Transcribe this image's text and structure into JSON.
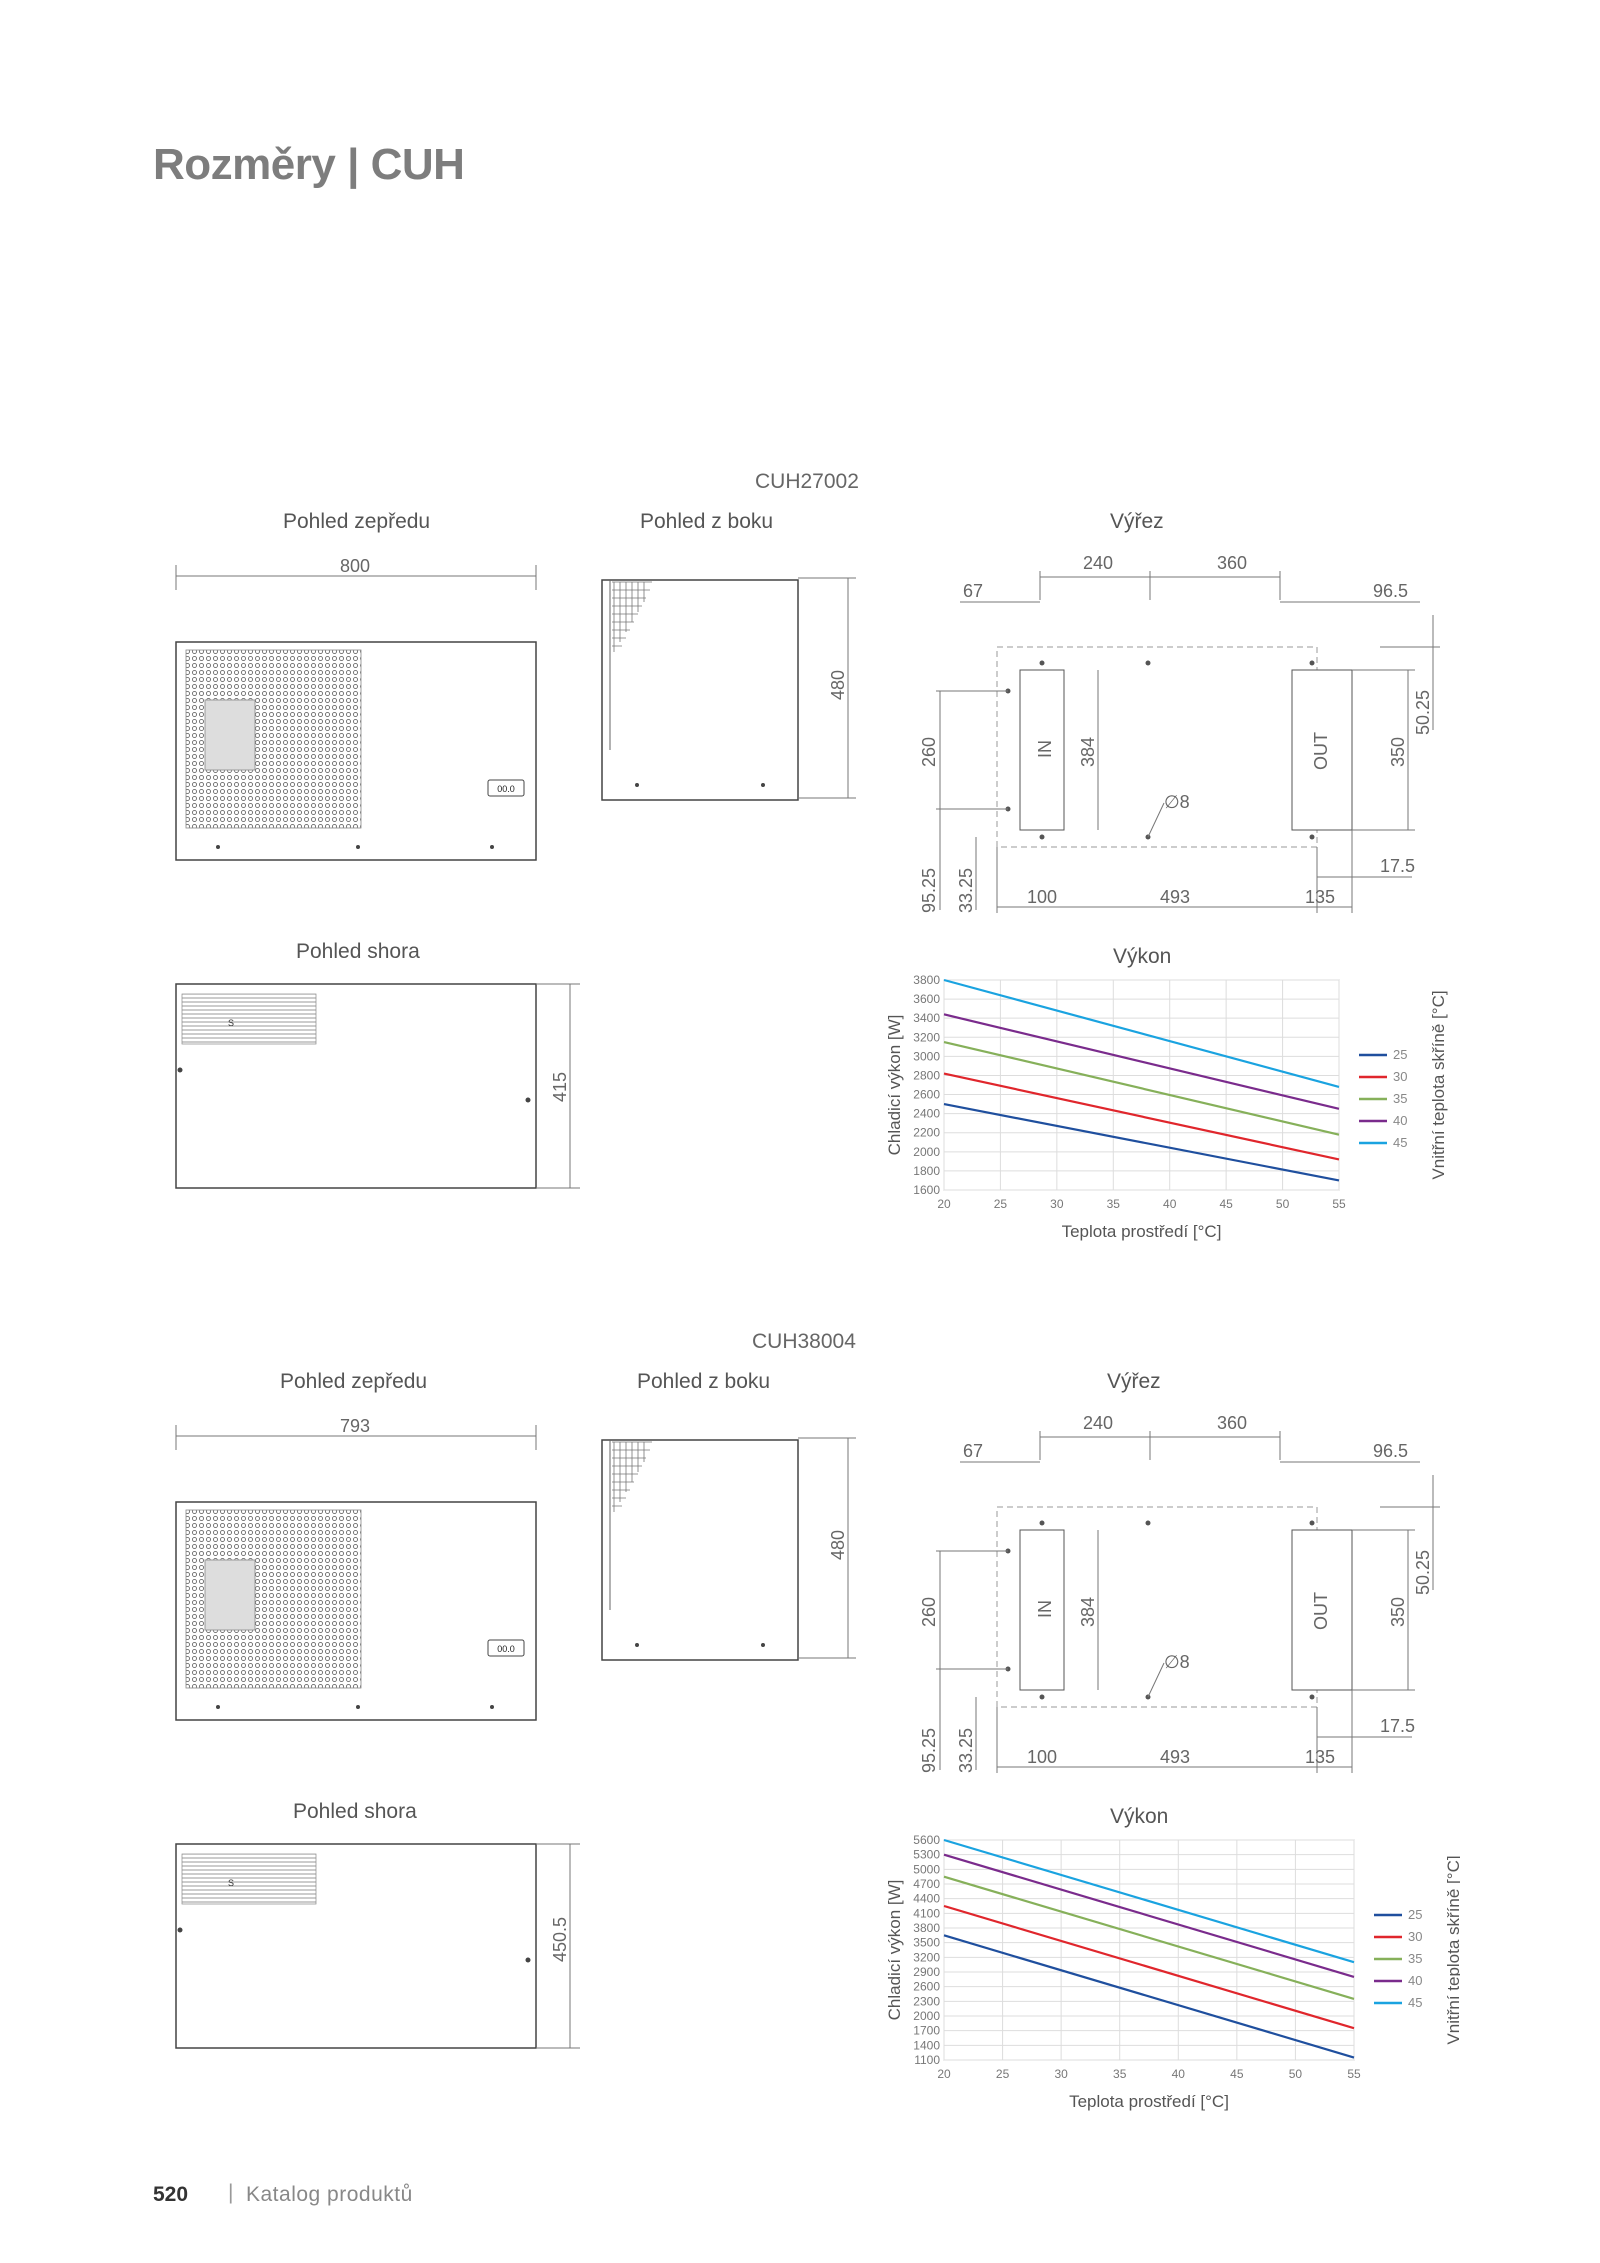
{
  "page": {
    "title": "Rozměry | CUH",
    "footer_page": "520",
    "footer_separator": "|",
    "footer_text": "Katalog produktů"
  },
  "sections": [
    {
      "model": "CUH27002",
      "views": {
        "front": "Pohled zepředu",
        "side": "Pohled z boku",
        "cutout": "Výřez",
        "top": "Pohled shora",
        "performance": "Výkon"
      },
      "dims": {
        "front_width": "800",
        "side_height": "480",
        "top_depth": "415",
        "display": "00.0",
        "s_mark": "S"
      },
      "cutout": {
        "d67": "67",
        "d240": "240",
        "d360": "360",
        "d96_5": "96.5",
        "d50_25": "50.25",
        "d260": "260",
        "d384": "384",
        "d350": "350",
        "in": "IN",
        "out": "OUT",
        "hole": "∅8",
        "d17_5": "17.5",
        "d95_25": "95.25",
        "d33_25": "33.25",
        "d100": "100",
        "d493": "493",
        "d135": "135"
      }
    },
    {
      "model": "CUH38004",
      "views": {
        "front": "Pohled zepředu",
        "side": "Pohled z boku",
        "cutout": "Výřez",
        "top": "Pohled shora",
        "performance": "Výkon"
      },
      "dims": {
        "front_width": "793",
        "side_height": "480",
        "top_depth": "450.5",
        "display": "00.0",
        "s_mark": "S"
      },
      "cutout": {
        "d67": "67",
        "d240": "240",
        "d360": "360",
        "d96_5": "96.5",
        "d50_25": "50.25",
        "d260": "260",
        "d384": "384",
        "d350": "350",
        "in": "IN",
        "out": "OUT",
        "hole": "∅8",
        "d17_5": "17.5",
        "d95_25": "95.25",
        "d33_25": "33.25",
        "d100": "100",
        "d493": "493",
        "d135": "135"
      }
    }
  ],
  "chart_data": [
    {
      "type": "line",
      "title": "Výkon",
      "xlabel": "Teplota prostředí [°C]",
      "ylabel": "Chladicí výkon [W]",
      "legend_title": "Vnitřní teplota skříně [°C]",
      "legend_position": "right",
      "grid": true,
      "x": [
        20,
        55
      ],
      "xticks": [
        20,
        25,
        30,
        35,
        40,
        45,
        50,
        55
      ],
      "yticks": [
        1600,
        1800,
        2000,
        2200,
        2400,
        2600,
        2800,
        3000,
        3200,
        3400,
        3600,
        3800
      ],
      "xlim": [
        20,
        55
      ],
      "ylim": [
        1600,
        3800
      ],
      "series": [
        {
          "name": "25",
          "color": "#1f4f9e",
          "values": [
            2500,
            1700
          ]
        },
        {
          "name": "30",
          "color": "#e0262c",
          "values": [
            2820,
            1920
          ]
        },
        {
          "name": "35",
          "color": "#86b05a",
          "values": [
            3150,
            2180
          ]
        },
        {
          "name": "40",
          "color": "#7a2b8c",
          "values": [
            3440,
            2450
          ]
        },
        {
          "name": "45",
          "color": "#1aa3e0",
          "values": [
            3800,
            2680
          ]
        }
      ]
    },
    {
      "type": "line",
      "title": "Výkon",
      "xlabel": "Teplota prostředí [°C]",
      "ylabel": "Chladicí výkon [W]",
      "legend_title": "Vnitřní teplota skříně [°C]",
      "legend_position": "right",
      "grid": true,
      "x": [
        20,
        55
      ],
      "xticks": [
        20,
        25,
        30,
        35,
        40,
        45,
        50,
        55
      ],
      "yticks": [
        1100,
        1400,
        1700,
        2000,
        2300,
        2600,
        2900,
        3200,
        3500,
        3800,
        4100,
        4400,
        4700,
        5000,
        5300,
        5600
      ],
      "xlim": [
        20,
        55
      ],
      "ylim": [
        1100,
        5600
      ],
      "series": [
        {
          "name": "25",
          "color": "#1f4f9e",
          "values": [
            3650,
            1150
          ]
        },
        {
          "name": "30",
          "color": "#e0262c",
          "values": [
            4250,
            1750
          ]
        },
        {
          "name": "35",
          "color": "#86b05a",
          "values": [
            4850,
            2350
          ]
        },
        {
          "name": "40",
          "color": "#7a2b8c",
          "values": [
            5300,
            2800
          ]
        },
        {
          "name": "45",
          "color": "#1aa3e0",
          "values": [
            5600,
            3100
          ]
        }
      ]
    }
  ]
}
